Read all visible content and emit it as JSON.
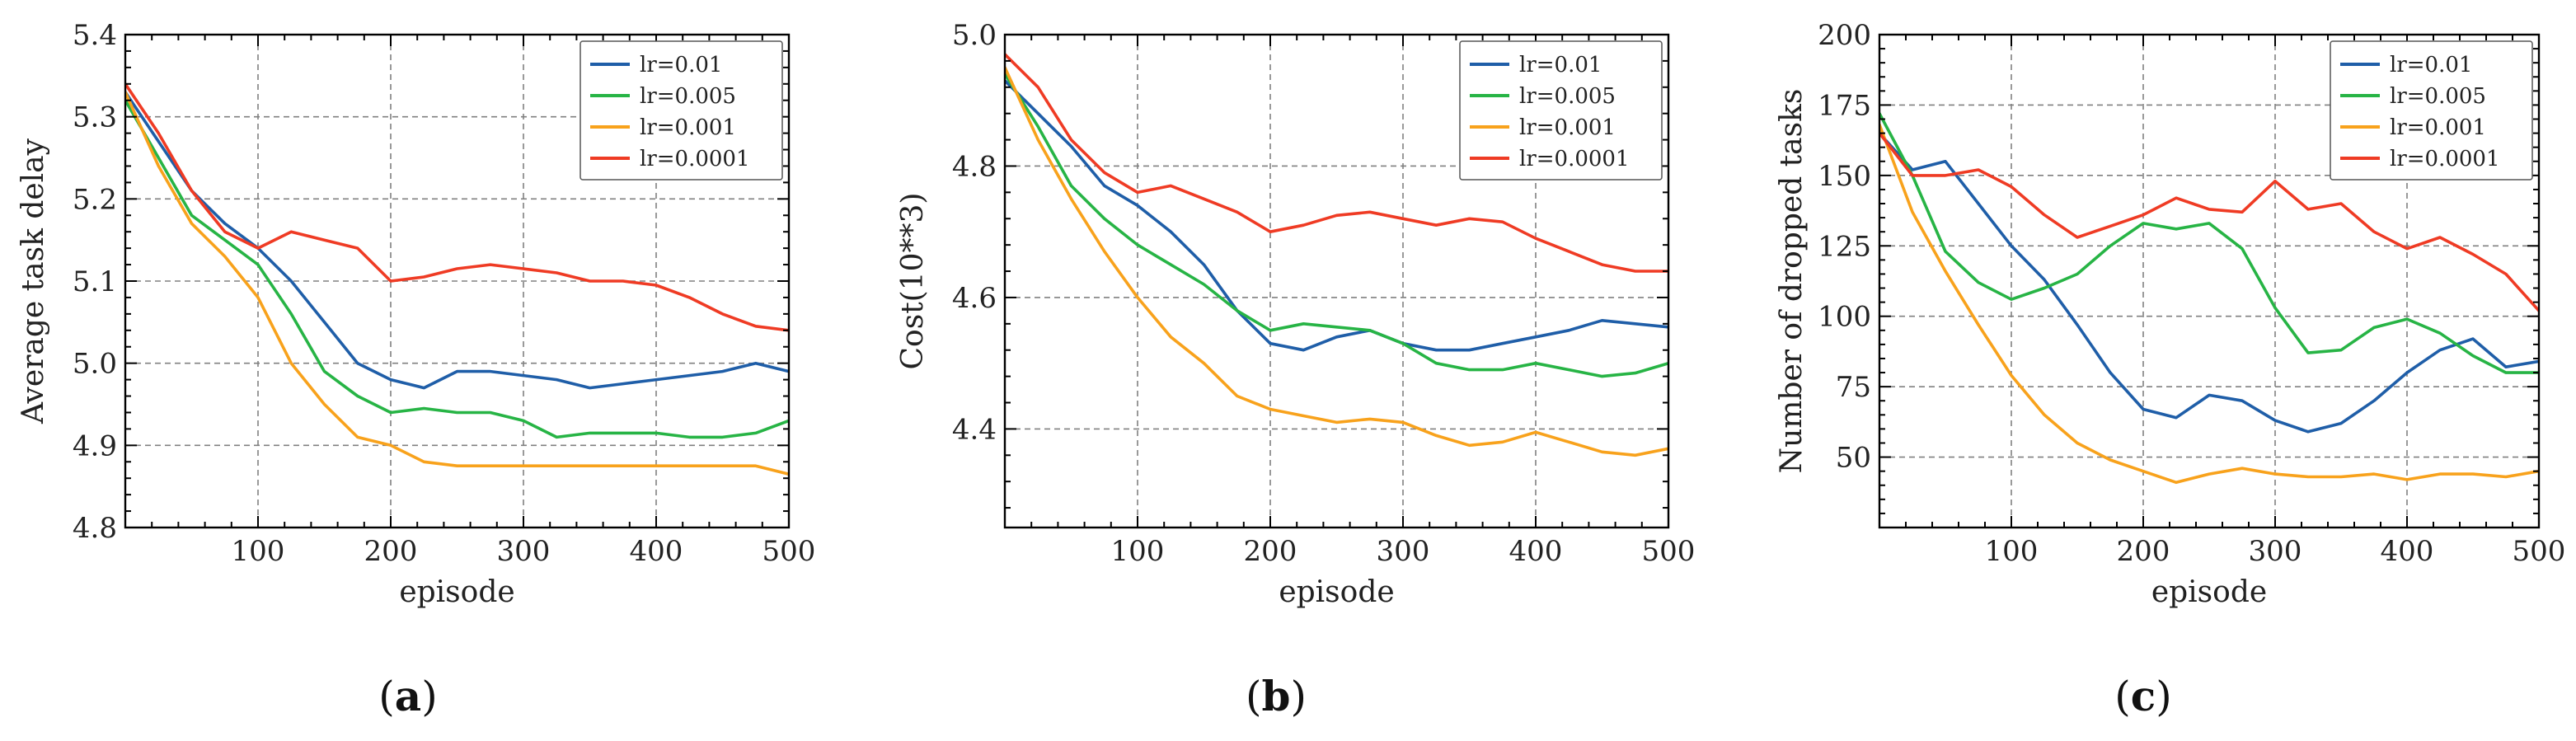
{
  "figure": {
    "panel_letters": [
      "a",
      "b",
      "c"
    ]
  },
  "chart_data": [
    {
      "type": "line",
      "caption": "(a)",
      "xlabel": "episode",
      "ylabel": "Average task delay",
      "xlim": [
        0,
        500
      ],
      "ylim": [
        4.8,
        5.4
      ],
      "xticks": [
        100,
        200,
        300,
        400,
        500
      ],
      "yticks": [
        4.8,
        4.9,
        5.0,
        5.1,
        5.2,
        5.3,
        5.4
      ],
      "ytick_labels": [
        "4.8",
        "4.9",
        "5.0",
        "5.1",
        "5.2",
        "5.3",
        "5.4"
      ],
      "grid": true,
      "legend_position": "top-right",
      "x": [
        0,
        25,
        50,
        75,
        100,
        125,
        150,
        175,
        200,
        225,
        250,
        275,
        300,
        325,
        350,
        375,
        400,
        425,
        450,
        475,
        500
      ],
      "series": [
        {
          "name": "lr=0.01",
          "color": "#1f5ea8",
          "values": [
            5.33,
            5.27,
            5.21,
            5.17,
            5.14,
            5.1,
            5.05,
            5.0,
            4.98,
            4.97,
            4.99,
            4.99,
            4.985,
            4.98,
            4.97,
            4.975,
            4.98,
            4.985,
            4.99,
            5.0,
            4.99
          ]
        },
        {
          "name": "lr=0.005",
          "color": "#27b445",
          "values": [
            5.32,
            5.25,
            5.18,
            5.15,
            5.12,
            5.06,
            4.99,
            4.96,
            4.94,
            4.945,
            4.94,
            4.94,
            4.93,
            4.91,
            4.915,
            4.915,
            4.915,
            4.91,
            4.91,
            4.915,
            4.93
          ]
        },
        {
          "name": "lr=0.001",
          "color": "#f8a21c",
          "values": [
            5.33,
            5.24,
            5.17,
            5.13,
            5.08,
            5.0,
            4.95,
            4.91,
            4.9,
            4.88,
            4.875,
            4.875,
            4.875,
            4.875,
            4.875,
            4.875,
            4.875,
            4.875,
            4.875,
            4.875,
            4.865
          ]
        },
        {
          "name": "lr=0.0001",
          "color": "#ef3b24",
          "values": [
            5.34,
            5.28,
            5.21,
            5.16,
            5.14,
            5.16,
            5.15,
            5.14,
            5.1,
            5.105,
            5.115,
            5.12,
            5.115,
            5.11,
            5.1,
            5.1,
            5.095,
            5.08,
            5.06,
            5.045,
            5.04
          ]
        }
      ]
    },
    {
      "type": "line",
      "caption": "(b)",
      "xlabel": "episode",
      "ylabel": "Cost(10**3)",
      "xlim": [
        0,
        500
      ],
      "ylim": [
        4.25,
        5.0
      ],
      "xticks": [
        100,
        200,
        300,
        400,
        500
      ],
      "yticks": [
        4.4,
        4.6,
        4.8,
        5.0
      ],
      "ytick_labels": [
        "4.4",
        "4.6",
        "4.8",
        "5.0"
      ],
      "grid": true,
      "legend_position": "top-right",
      "x": [
        0,
        25,
        50,
        75,
        100,
        125,
        150,
        175,
        200,
        225,
        250,
        275,
        300,
        325,
        350,
        375,
        400,
        425,
        450,
        475,
        500
      ],
      "series": [
        {
          "name": "lr=0.01",
          "color": "#1f5ea8",
          "values": [
            4.93,
            4.88,
            4.83,
            4.77,
            4.74,
            4.7,
            4.65,
            4.58,
            4.53,
            4.52,
            4.54,
            4.55,
            4.53,
            4.52,
            4.52,
            4.53,
            4.54,
            4.55,
            4.565,
            4.56,
            4.555
          ]
        },
        {
          "name": "lr=0.005",
          "color": "#27b445",
          "values": [
            4.94,
            4.86,
            4.77,
            4.72,
            4.68,
            4.65,
            4.62,
            4.58,
            4.55,
            4.56,
            4.555,
            4.55,
            4.53,
            4.5,
            4.49,
            4.49,
            4.5,
            4.49,
            4.48,
            4.485,
            4.5
          ]
        },
        {
          "name": "lr=0.001",
          "color": "#f8a21c",
          "values": [
            4.95,
            4.84,
            4.75,
            4.67,
            4.6,
            4.54,
            4.5,
            4.45,
            4.43,
            4.42,
            4.41,
            4.415,
            4.41,
            4.39,
            4.375,
            4.38,
            4.395,
            4.38,
            4.365,
            4.36,
            4.37
          ]
        },
        {
          "name": "lr=0.0001",
          "color": "#ef3b24",
          "values": [
            4.97,
            4.92,
            4.84,
            4.79,
            4.76,
            4.77,
            4.75,
            4.73,
            4.7,
            4.71,
            4.725,
            4.73,
            4.72,
            4.71,
            4.72,
            4.715,
            4.69,
            4.67,
            4.65,
            4.64,
            4.64
          ]
        }
      ]
    },
    {
      "type": "line",
      "caption": "(c)",
      "xlabel": "episode",
      "ylabel": "Number of dropped tasks",
      "xlim": [
        0,
        500
      ],
      "ylim": [
        25,
        200
      ],
      "xticks": [
        100,
        200,
        300,
        400,
        500
      ],
      "yticks": [
        50,
        75,
        100,
        125,
        150,
        175,
        200
      ],
      "ytick_labels": [
        "50",
        "75",
        "100",
        "125",
        "150",
        "175",
        "200"
      ],
      "grid": true,
      "legend_position": "top-right",
      "x": [
        0,
        25,
        50,
        75,
        100,
        125,
        150,
        175,
        200,
        225,
        250,
        275,
        300,
        325,
        350,
        375,
        400,
        425,
        450,
        475,
        500
      ],
      "series": [
        {
          "name": "lr=0.01",
          "color": "#1f5ea8",
          "values": [
            165,
            152,
            155,
            140,
            125,
            113,
            97,
            80,
            67,
            64,
            72,
            70,
            63,
            59,
            62,
            70,
            80,
            88,
            92,
            82,
            84
          ]
        },
        {
          "name": "lr=0.005",
          "color": "#27b445",
          "values": [
            172,
            150,
            123,
            112,
            106,
            110,
            115,
            125,
            133,
            131,
            133,
            124,
            103,
            87,
            88,
            96,
            99,
            94,
            86,
            80,
            80
          ]
        },
        {
          "name": "lr=0.001",
          "color": "#f8a21c",
          "values": [
            168,
            137,
            116,
            97,
            79,
            65,
            55,
            49,
            45,
            41,
            44,
            46,
            44,
            43,
            43,
            44,
            42,
            44,
            44,
            43,
            45
          ]
        },
        {
          "name": "lr=0.0001",
          "color": "#ef3b24",
          "values": [
            165,
            150,
            150,
            152,
            146,
            136,
            128,
            132,
            136,
            142,
            138,
            137,
            148,
            138,
            140,
            130,
            124,
            128,
            122,
            115,
            102
          ]
        }
      ]
    }
  ]
}
